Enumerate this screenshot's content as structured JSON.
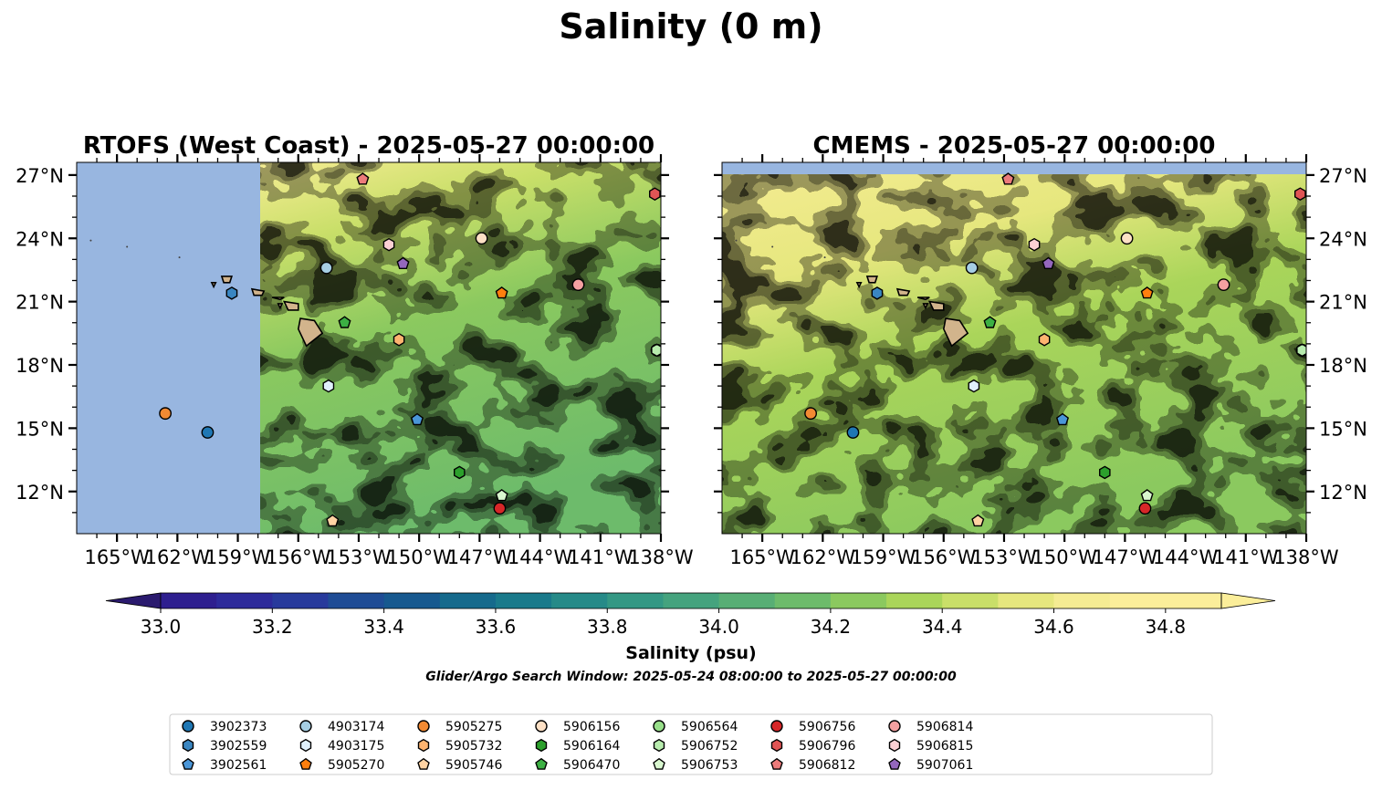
{
  "figure": {
    "title": "Salinity (0 m)",
    "colorbar_label": "Salinity (psu)",
    "search_window": "Glider/Argo Search Window: 2025-05-24 08:00:00 to 2025-05-27 00:00:00"
  },
  "panels": [
    {
      "title": "RTOFS (West Coast) - 2025-05-27 00:00:00",
      "data_boundary_lon": -157.4,
      "masked_color": "#98b6e0"
    },
    {
      "title": "CMEMS - 2025-05-27 00:00:00",
      "data_boundary_lat": 27.3,
      "masked_color": "#98b6e0"
    }
  ],
  "axes": {
    "lon_range": [
      -167,
      -138
    ],
    "lat_range": [
      10,
      27.6
    ],
    "lon_ticks": [
      -165,
      -162,
      -159,
      -156,
      -153,
      -150,
      -147,
      -144,
      -141,
      -138
    ],
    "lon_labels": [
      "165°W",
      "162°W",
      "159°W",
      "156°W",
      "153°W",
      "150°W",
      "147°W",
      "144°W",
      "141°W",
      "138°W"
    ],
    "lat_ticks": [
      27,
      24,
      21,
      18,
      15,
      12
    ],
    "lat_labels": [
      "27°N",
      "24°N",
      "21°N",
      "18°N",
      "15°N",
      "12°N"
    ]
  },
  "colorbar": {
    "range": [
      32.9,
      34.9
    ],
    "step": 0.1,
    "extend": "both",
    "ticks": [
      33.0,
      33.2,
      33.4,
      33.6,
      33.8,
      34.0,
      34.2,
      34.4,
      34.6,
      34.8
    ],
    "tick_labels": [
      "33.0",
      "33.2",
      "33.4",
      "33.6",
      "33.8",
      "34.0",
      "34.2",
      "34.4",
      "34.6",
      "34.8"
    ],
    "colors": [
      "#2a1a6e",
      "#2e1f8f",
      "#2d2a9a",
      "#283a9c",
      "#1f4c95",
      "#17598f",
      "#166a8c",
      "#1a7a8b",
      "#268a88",
      "#349884",
      "#45a37e",
      "#58ae75",
      "#6dbb6b",
      "#8bc95f",
      "#aad55a",
      "#c9df69",
      "#e6e77e",
      "#f5ec93",
      "#fbee9a"
    ]
  },
  "floats": [
    {
      "id": "3902373",
      "lon": -160.5,
      "lat": 14.8,
      "color": "#1f77b4",
      "marker": "circle"
    },
    {
      "id": "3902559",
      "lon": -159.3,
      "lat": 21.4,
      "color": "#3a86c1",
      "marker": "hexagon"
    },
    {
      "id": "3902561",
      "lon": -150.1,
      "lat": 15.4,
      "color": "#4a96d8",
      "marker": "pentagon"
    },
    {
      "id": "4903174",
      "lon": -154.6,
      "lat": 22.6,
      "color": "#a6cee3",
      "marker": "circle"
    },
    {
      "id": "4903175",
      "lon": -154.5,
      "lat": 17.0,
      "color": "#dff0fb",
      "marker": "hexagon"
    },
    {
      "id": "5905270",
      "lon": -145.9,
      "lat": 21.4,
      "color": "#ff7f0e",
      "marker": "pentagon"
    },
    {
      "id": "5905275",
      "lon": -162.6,
      "lat": 15.7,
      "color": "#f28a33",
      "marker": "circle"
    },
    {
      "id": "5905732",
      "lon": -151.0,
      "lat": 19.2,
      "color": "#fdb470",
      "marker": "hexagon"
    },
    {
      "id": "5905746",
      "lon": -154.3,
      "lat": 10.6,
      "color": "#ffd3a3",
      "marker": "pentagon"
    },
    {
      "id": "5906156",
      "lon": -146.9,
      "lat": 24.0,
      "color": "#fde0c5",
      "marker": "circle"
    },
    {
      "id": "5906164",
      "lon": -148.0,
      "lat": 12.9,
      "color": "#2ca02c",
      "marker": "hexagon"
    },
    {
      "id": "5906470",
      "lon": -153.7,
      "lat": 20.0,
      "color": "#3cb043",
      "marker": "pentagon"
    },
    {
      "id": "5906564",
      "lon": -138.2,
      "lat": 18.7,
      "color": "#98df8a",
      "marker": "circle"
    },
    {
      "id": "5906752",
      "lon": -138.2,
      "lat": 18.7,
      "color": "#b8ecae",
      "marker": "hexagon"
    },
    {
      "id": "5906753",
      "lon": -145.9,
      "lat": 11.8,
      "color": "#d9f7cf",
      "marker": "pentagon"
    },
    {
      "id": "5906756",
      "lon": -146.0,
      "lat": 11.2,
      "color": "#d62728",
      "marker": "circle"
    },
    {
      "id": "5906796",
      "lon": -138.3,
      "lat": 26.1,
      "color": "#e05555",
      "marker": "hexagon"
    },
    {
      "id": "5906812",
      "lon": -152.8,
      "lat": 26.8,
      "color": "#ec7b7b",
      "marker": "pentagon"
    },
    {
      "id": "5906814",
      "lon": -142.1,
      "lat": 21.8,
      "color": "#f4a0a0",
      "marker": "circle"
    },
    {
      "id": "5906815",
      "lon": -151.5,
      "lat": 23.7,
      "color": "#fbd0d4",
      "marker": "hexagon"
    },
    {
      "id": "5907061",
      "lon": -150.8,
      "lat": 22.8,
      "color": "#9467bd",
      "marker": "pentagon"
    }
  ],
  "land_color": "#d2b48c"
}
